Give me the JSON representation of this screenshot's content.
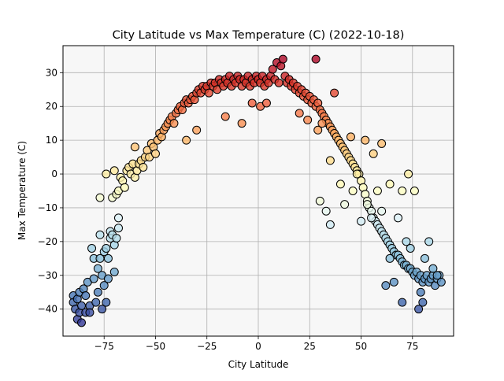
{
  "chart_data": {
    "type": "scatter",
    "title": "City Latitude vs Max Temperature (C) (2022-10-18)",
    "xlabel": "City Latitude",
    "ylabel": "Max Temperature (C)",
    "xlim": [
      -95,
      95
    ],
    "ylim": [
      -48,
      38
    ],
    "xticks": [
      -75,
      -50,
      -25,
      0,
      25,
      50,
      75
    ],
    "xtick_labels": [
      "−75",
      "−50",
      "−25",
      "0",
      "25",
      "50",
      "75"
    ],
    "yticks": [
      -40,
      -30,
      -20,
      -10,
      0,
      10,
      20,
      30
    ],
    "ytick_labels": [
      "−40",
      "−30",
      "−20",
      "−10",
      "0",
      "10",
      "20",
      "30"
    ],
    "grid": true,
    "plot_background": "#f7f7f7",
    "marker": "circle, black edge, colored by temperature",
    "colormap": "RdYlBu (reversed: warm = red, cold = blue)",
    "color_range": [
      -44,
      35
    ],
    "points": [
      [
        -90,
        -36
      ],
      [
        -90,
        -38
      ],
      [
        -89,
        -40
      ],
      [
        -88,
        -43
      ],
      [
        -88,
        -37
      ],
      [
        -87,
        -35
      ],
      [
        -87,
        -41
      ],
      [
        -86,
        -44
      ],
      [
        -86,
        -39
      ],
      [
        -85,
        -34
      ],
      [
        -84,
        -36
      ],
      [
        -84,
        -41
      ],
      [
        -83,
        -32
      ],
      [
        -82,
        -39
      ],
      [
        -82,
        -41
      ],
      [
        -81,
        -22
      ],
      [
        -80,
        -25
      ],
      [
        -80,
        -31
      ],
      [
        -79,
        -38
      ],
      [
        -78,
        -28
      ],
      [
        -78,
        -35
      ],
      [
        -77,
        -18
      ],
      [
        -77,
        -25
      ],
      [
        -76,
        -30
      ],
      [
        -76,
        -40
      ],
      [
        -75,
        -23
      ],
      [
        -75,
        -33
      ],
      [
        -74,
        -22
      ],
      [
        -74,
        -38
      ],
      [
        -73,
        -25
      ],
      [
        -73,
        -31
      ],
      [
        -72,
        -17
      ],
      [
        -72,
        -19
      ],
      [
        -71,
        -7
      ],
      [
        -71,
        -18
      ],
      [
        -70,
        -21
      ],
      [
        -70,
        -29
      ],
      [
        -69,
        -19
      ],
      [
        -69,
        -6
      ],
      [
        -68,
        -13
      ],
      [
        -68,
        -16
      ],
      [
        -68,
        -5
      ],
      [
        -67,
        -1
      ],
      [
        -66,
        -2
      ],
      [
        -65,
        -4
      ],
      [
        -64,
        1
      ],
      [
        -63,
        2
      ],
      [
        -62,
        0
      ],
      [
        -61,
        3
      ],
      [
        -60,
        -1
      ],
      [
        -59,
        1
      ],
      [
        -58,
        3
      ],
      [
        -57,
        4
      ],
      [
        -56,
        2
      ],
      [
        -55,
        5
      ],
      [
        -54,
        7
      ],
      [
        -53,
        5
      ],
      [
        -52,
        9
      ],
      [
        -51,
        8
      ],
      [
        -50,
        6
      ],
      [
        -49,
        10
      ],
      [
        -48,
        12
      ],
      [
        -47,
        11
      ],
      [
        -46,
        13
      ],
      [
        -45,
        14
      ],
      [
        -44,
        15
      ],
      [
        -43,
        16
      ],
      [
        -42,
        17
      ],
      [
        -41,
        15
      ],
      [
        -40,
        18
      ],
      [
        -39,
        19
      ],
      [
        -38,
        20
      ],
      [
        -37,
        19
      ],
      [
        -36,
        21
      ],
      [
        -35,
        22
      ],
      [
        -34,
        21
      ],
      [
        -33,
        22
      ],
      [
        -32,
        23
      ],
      [
        -31,
        22
      ],
      [
        -30,
        24
      ],
      [
        -29,
        25
      ],
      [
        -28,
        24
      ],
      [
        -27,
        26
      ],
      [
        -26,
        25
      ],
      [
        -25,
        26
      ],
      [
        -24,
        24
      ],
      [
        -23,
        27
      ],
      [
        -22,
        26
      ],
      [
        -21,
        27
      ],
      [
        -20,
        25
      ],
      [
        -19,
        28
      ],
      [
        -18,
        27
      ],
      [
        -17,
        26
      ],
      [
        -16,
        28
      ],
      [
        -15,
        27
      ],
      [
        -14,
        29
      ],
      [
        -13,
        26
      ],
      [
        -12,
        28
      ],
      [
        -11,
        27
      ],
      [
        -10,
        29
      ],
      [
        -9,
        28
      ],
      [
        -8,
        26
      ],
      [
        -7,
        28
      ],
      [
        -6,
        27
      ],
      [
        -5,
        29
      ],
      [
        -4,
        26
      ],
      [
        -3,
        28
      ],
      [
        -2,
        27
      ],
      [
        -1,
        29
      ],
      [
        0,
        28
      ],
      [
        1,
        27
      ],
      [
        2,
        29
      ],
      [
        3,
        26
      ],
      [
        4,
        28
      ],
      [
        5,
        27
      ],
      [
        6,
        29
      ],
      [
        7,
        31
      ],
      [
        8,
        28
      ],
      [
        9,
        33
      ],
      [
        10,
        27
      ],
      [
        11,
        32
      ],
      [
        12,
        34
      ],
      [
        13,
        29
      ],
      [
        14,
        27
      ],
      [
        15,
        28
      ],
      [
        16,
        26
      ],
      [
        17,
        27
      ],
      [
        18,
        25
      ],
      [
        19,
        26
      ],
      [
        20,
        24
      ],
      [
        21,
        25
      ],
      [
        22,
        23
      ],
      [
        23,
        24
      ],
      [
        24,
        22
      ],
      [
        25,
        23
      ],
      [
        26,
        21
      ],
      [
        27,
        22
      ],
      [
        28,
        20
      ],
      [
        29,
        21
      ],
      [
        30,
        19
      ],
      [
        31,
        18
      ],
      [
        32,
        17
      ],
      [
        33,
        16
      ],
      [
        34,
        15
      ],
      [
        35,
        14
      ],
      [
        36,
        13
      ],
      [
        37,
        12
      ],
      [
        38,
        11
      ],
      [
        39,
        10
      ],
      [
        40,
        9
      ],
      [
        41,
        8
      ],
      [
        42,
        7
      ],
      [
        43,
        6
      ],
      [
        44,
        5
      ],
      [
        45,
        4
      ],
      [
        46,
        3
      ],
      [
        47,
        2
      ],
      [
        48,
        1
      ],
      [
        49,
        0
      ],
      [
        50,
        -2
      ],
      [
        51,
        -4
      ],
      [
        52,
        -6
      ],
      [
        53,
        -8
      ],
      [
        54,
        -10
      ],
      [
        55,
        -11
      ],
      [
        56,
        -13
      ],
      [
        57,
        -14
      ],
      [
        58,
        -15
      ],
      [
        59,
        -16
      ],
      [
        60,
        -17
      ],
      [
        61,
        -18
      ],
      [
        62,
        -19
      ],
      [
        63,
        -20
      ],
      [
        64,
        -21
      ],
      [
        65,
        -22
      ],
      [
        66,
        -23
      ],
      [
        67,
        -24
      ],
      [
        68,
        -24
      ],
      [
        69,
        -25
      ],
      [
        70,
        -26
      ],
      [
        71,
        -27
      ],
      [
        72,
        -27
      ],
      [
        73,
        -28
      ],
      [
        74,
        -28
      ],
      [
        75,
        -29
      ],
      [
        76,
        -30
      ],
      [
        77,
        -29
      ],
      [
        78,
        -31
      ],
      [
        79,
        -30
      ],
      [
        80,
        -32
      ],
      [
        81,
        -31
      ],
      [
        82,
        -30
      ],
      [
        83,
        -32
      ],
      [
        84,
        -31
      ],
      [
        85,
        -30
      ],
      [
        86,
        -33
      ],
      [
        87,
        -31
      ],
      [
        88,
        -30
      ],
      [
        89,
        -32
      ],
      [
        -16,
        17
      ],
      [
        -8,
        15
      ],
      [
        -3,
        21
      ],
      [
        1,
        20
      ],
      [
        4,
        21
      ],
      [
        20,
        18
      ],
      [
        24,
        16
      ],
      [
        28,
        34
      ],
      [
        29,
        13
      ],
      [
        31,
        15
      ],
      [
        35,
        4
      ],
      [
        37,
        24
      ],
      [
        40,
        -3
      ],
      [
        42,
        -9
      ],
      [
        46,
        -5
      ],
      [
        48,
        0
      ],
      [
        50,
        -14
      ],
      [
        53,
        -9
      ],
      [
        55,
        -13
      ],
      [
        58,
        -5
      ],
      [
        60,
        -11
      ],
      [
        62,
        -33
      ],
      [
        64,
        -25
      ],
      [
        66,
        -32
      ],
      [
        68,
        -13
      ],
      [
        70,
        -38
      ],
      [
        72,
        -20
      ],
      [
        74,
        -22
      ],
      [
        76,
        -5
      ],
      [
        78,
        -40
      ],
      [
        79,
        -35
      ],
      [
        80,
        -38
      ],
      [
        81,
        -25
      ],
      [
        83,
        -20
      ],
      [
        85,
        -28
      ],
      [
        87,
        -30
      ],
      [
        60,
        9
      ],
      [
        64,
        -3
      ],
      [
        70,
        -5
      ],
      [
        73,
        0
      ],
      [
        30,
        -8
      ],
      [
        33,
        -11
      ],
      [
        35,
        -15
      ],
      [
        45,
        11
      ],
      [
        52,
        10
      ],
      [
        56,
        6
      ],
      [
        -60,
        8
      ],
      [
        -70,
        1
      ],
      [
        -74,
        0
      ],
      [
        -77,
        -7
      ],
      [
        -30,
        13
      ],
      [
        -35,
        10
      ]
    ]
  }
}
